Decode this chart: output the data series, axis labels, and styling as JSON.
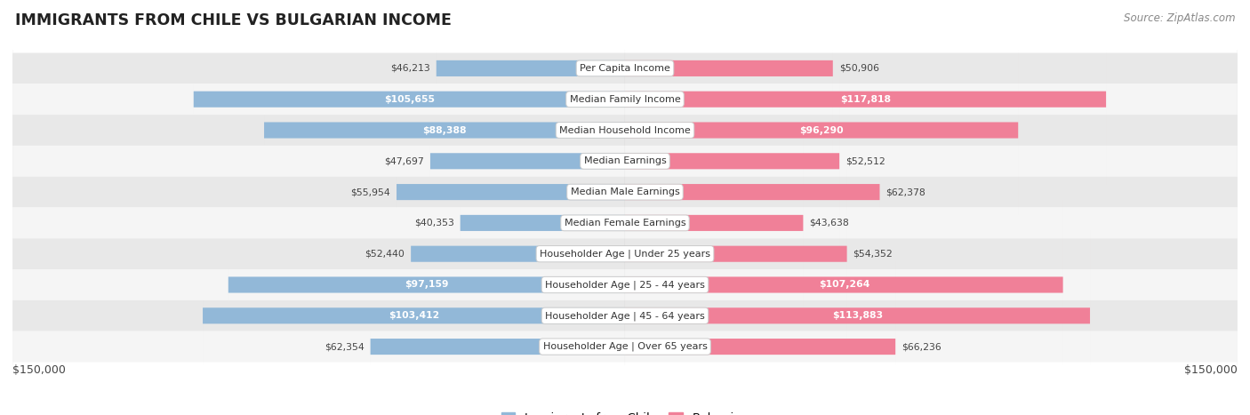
{
  "title": "IMMIGRANTS FROM CHILE VS BULGARIAN INCOME",
  "source": "Source: ZipAtlas.com",
  "categories": [
    "Per Capita Income",
    "Median Family Income",
    "Median Household Income",
    "Median Earnings",
    "Median Male Earnings",
    "Median Female Earnings",
    "Householder Age | Under 25 years",
    "Householder Age | 25 - 44 years",
    "Householder Age | 45 - 64 years",
    "Householder Age | Over 65 years"
  ],
  "chile_values": [
    46213,
    105655,
    88388,
    47697,
    55954,
    40353,
    52440,
    97159,
    103412,
    62354
  ],
  "bulgarian_values": [
    50906,
    117818,
    96290,
    52512,
    62378,
    43638,
    54352,
    107264,
    113883,
    66236
  ],
  "chile_labels": [
    "$46,213",
    "$105,655",
    "$88,388",
    "$47,697",
    "$55,954",
    "$40,353",
    "$52,440",
    "$97,159",
    "$103,412",
    "$62,354"
  ],
  "bulgarian_labels": [
    "$50,906",
    "$117,818",
    "$96,290",
    "$52,512",
    "$62,378",
    "$43,638",
    "$54,352",
    "$107,264",
    "$113,883",
    "$66,236"
  ],
  "chile_color": "#92b8d8",
  "bulgarian_color": "#f08098",
  "max_value": 150000,
  "bar_height": 0.52,
  "background_color": "#ffffff",
  "row_bg_even": "#e8e8e8",
  "row_bg_odd": "#f5f5f5",
  "legend_chile": "Immigrants from Chile",
  "legend_bulgarian": "Bulgarian",
  "x_label_left": "$150,000",
  "x_label_right": "$150,000",
  "inside_label_threshold": 75000
}
